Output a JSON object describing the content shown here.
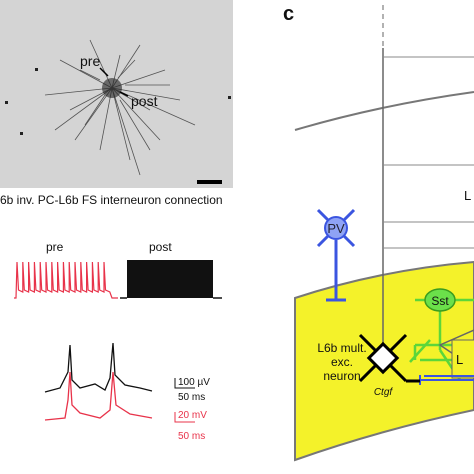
{
  "panel_b": {
    "micrograph_labels": [
      "pre",
      "post"
    ],
    "caption": "6b inv. PC-L6b FS interneuron connection",
    "trace_labels": [
      "pre",
      "post"
    ],
    "scale_bars": [
      {
        "amplitude": "100 µV",
        "time": "50 ms"
      },
      {
        "amplitude": "20 mV",
        "time": "50 ms"
      }
    ]
  },
  "panel_c": {
    "label": "c",
    "nodes": [
      {
        "label": "PV"
      },
      {
        "label": "Sst"
      },
      {
        "label": [
          "L6b mult.",
          "exc.",
          "neuron"
        ],
        "marker": "Ctgf"
      }
    ],
    "layer_labels": [
      "L",
      "L"
    ]
  }
}
